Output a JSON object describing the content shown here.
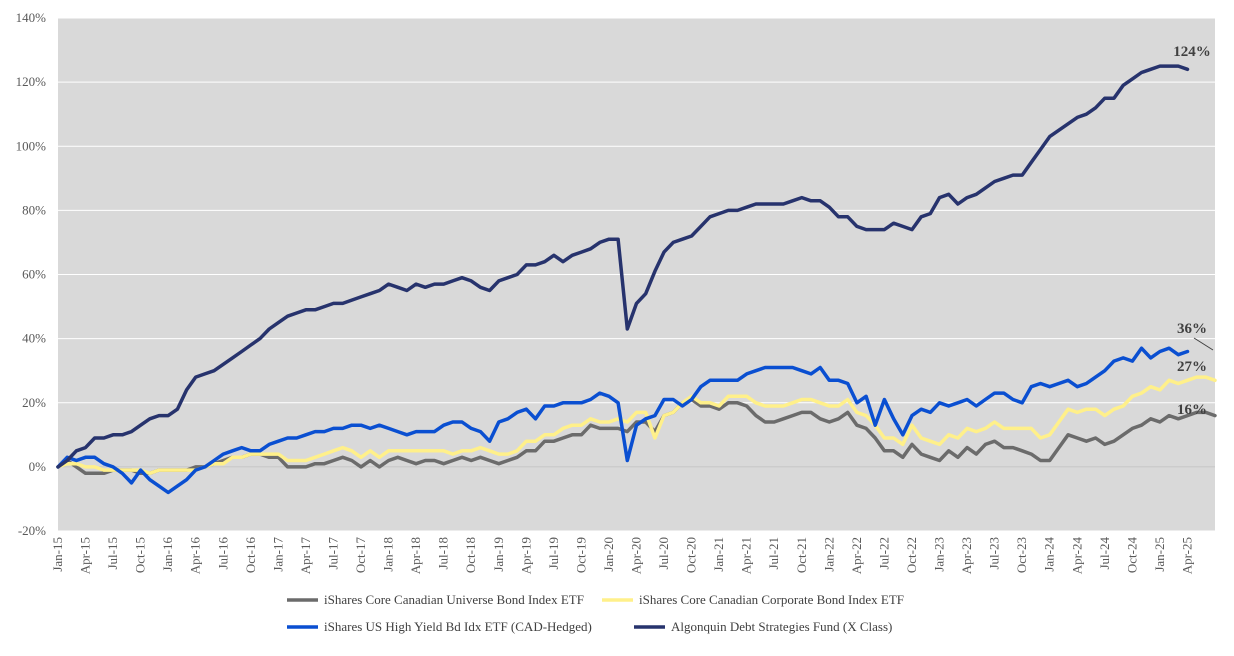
{
  "chart_data": {
    "type": "line",
    "title": "",
    "xlabel": "",
    "ylabel": "",
    "ylim": [
      -20,
      140
    ],
    "y_ticks": [
      "-20%",
      "0%",
      "20%",
      "40%",
      "60%",
      "80%",
      "100%",
      "120%",
      "140%"
    ],
    "y_tick_values": [
      -20,
      0,
      20,
      40,
      60,
      80,
      100,
      120,
      140
    ],
    "x_ticks": [
      "Jan-15",
      "Apr-15",
      "Jul-15",
      "Oct-15",
      "Jan-16",
      "Apr-16",
      "Jul-16",
      "Oct-16",
      "Jan-17",
      "Apr-17",
      "Jul-17",
      "Oct-17",
      "Jan-18",
      "Apr-18",
      "Jul-18",
      "Oct-18",
      "Jan-19",
      "Apr-19",
      "Jul-19",
      "Oct-19",
      "Jan-20",
      "Apr-20",
      "Jul-20",
      "Oct-20",
      "Jan-21",
      "Apr-21",
      "Jul-21",
      "Oct-21",
      "Jan-22",
      "Apr-22",
      "Jul-22",
      "Oct-22",
      "Jan-23",
      "Apr-23",
      "Jul-23",
      "Oct-23",
      "Jan-24",
      "Apr-24",
      "Jul-24",
      "Oct-24",
      "Jan-25",
      "Apr-25"
    ],
    "x_start": "Jan-15",
    "x_end": "Apr-25",
    "frequency": "monthly",
    "grid": true,
    "plot_background": "#d9d9d9",
    "legend_position": "bottom",
    "series": [
      {
        "name": "iShares Core Canadian Universe Bond Index ETF",
        "color": "#6b6b6b",
        "end_label": "16%",
        "values": [
          0,
          2,
          0,
          -2,
          -2,
          -2,
          -1,
          -1,
          -1,
          -2,
          -2,
          -1,
          -1,
          -1,
          -1,
          0,
          0,
          1,
          2,
          3,
          3,
          4,
          4,
          3,
          3,
          0,
          0,
          0,
          1,
          1,
          2,
          3,
          2,
          0,
          2,
          0,
          2,
          3,
          2,
          1,
          2,
          2,
          1,
          2,
          3,
          2,
          3,
          2,
          1,
          2,
          3,
          5,
          5,
          8,
          8,
          9,
          10,
          10,
          13,
          12,
          12,
          12,
          11,
          14,
          14,
          11,
          16,
          17,
          20,
          21,
          19,
          19,
          18,
          20,
          20,
          19,
          16,
          14,
          14,
          15,
          16,
          17,
          17,
          15,
          14,
          15,
          17,
          13,
          12,
          9,
          5,
          5,
          3,
          7,
          4,
          3,
          2,
          5,
          3,
          6,
          4,
          7,
          8,
          6,
          6,
          5,
          4,
          2,
          2,
          6,
          10,
          9,
          8,
          9,
          7,
          8,
          10,
          12,
          13,
          15,
          14,
          16,
          15,
          16,
          17,
          17,
          16
        ]
      },
      {
        "name": "iShares Core Canadian Corporate Bond Index ETF",
        "color": "#fff08a",
        "end_label": "27%",
        "values": [
          0,
          1,
          1,
          0,
          0,
          -1,
          -1,
          -1,
          -1,
          -1,
          -2,
          -1,
          -1,
          -1,
          -1,
          -1,
          0,
          1,
          1,
          3,
          3,
          4,
          4,
          4,
          4,
          2,
          2,
          2,
          3,
          4,
          5,
          6,
          5,
          3,
          5,
          3,
          5,
          5,
          5,
          5,
          5,
          5,
          5,
          4,
          5,
          5,
          6,
          5,
          4,
          4,
          5,
          8,
          8,
          10,
          10,
          12,
          13,
          13,
          15,
          14,
          14,
          15,
          14,
          17,
          17,
          9,
          16,
          17,
          20,
          22,
          20,
          20,
          19,
          22,
          22,
          22,
          20,
          19,
          19,
          19,
          20,
          21,
          21,
          20,
          19,
          19,
          21,
          17,
          16,
          13,
          9,
          9,
          7,
          13,
          9,
          8,
          7,
          10,
          9,
          12,
          11,
          12,
          14,
          12,
          12,
          12,
          12,
          9,
          10,
          14,
          18,
          17,
          18,
          18,
          16,
          18,
          19,
          22,
          23,
          25,
          24,
          27,
          26,
          27,
          28,
          28,
          27
        ]
      },
      {
        "name": "iShares US High Yield Bd Idx ETF (CAD-Hedged)",
        "color": "#0a4fd1",
        "end_label": "36%",
        "values": [
          0,
          3,
          2,
          3,
          3,
          1,
          0,
          -2,
          -5,
          -1,
          -4,
          -6,
          -8,
          -6,
          -4,
          -1,
          0,
          2,
          4,
          5,
          6,
          5,
          5,
          7,
          8,
          9,
          9,
          10,
          11,
          11,
          12,
          12,
          13,
          13,
          12,
          13,
          12,
          11,
          10,
          11,
          11,
          11,
          13,
          14,
          14,
          12,
          11,
          8,
          14,
          15,
          17,
          18,
          15,
          19,
          19,
          20,
          20,
          20,
          21,
          23,
          22,
          20,
          2,
          13,
          15,
          16,
          21,
          21,
          19,
          21,
          25,
          27,
          27,
          27,
          27,
          29,
          30,
          31,
          31,
          31,
          31,
          30,
          29,
          31,
          27,
          27,
          26,
          20,
          22,
          13,
          21,
          15,
          10,
          16,
          18,
          17,
          20,
          19,
          20,
          21,
          19,
          21,
          23,
          23,
          21,
          20,
          25,
          26,
          25,
          26,
          27,
          25,
          26,
          28,
          30,
          33,
          34,
          33,
          37,
          34,
          36,
          37,
          35,
          36
        ]
      },
      {
        "name": "Algonquin Debt Strategies Fund (X Class)",
        "color": "#27336d",
        "end_label": "124%",
        "values": [
          0,
          2,
          5,
          6,
          9,
          9,
          10,
          10,
          11,
          13,
          15,
          16,
          16,
          18,
          24,
          28,
          29,
          30,
          32,
          34,
          36,
          38,
          40,
          43,
          45,
          47,
          48,
          49,
          49,
          50,
          51,
          51,
          52,
          53,
          54,
          55,
          57,
          56,
          55,
          57,
          56,
          57,
          57,
          58,
          59,
          58,
          56,
          55,
          58,
          59,
          60,
          63,
          63,
          64,
          66,
          64,
          66,
          67,
          68,
          70,
          71,
          71,
          43,
          51,
          54,
          61,
          67,
          70,
          71,
          72,
          75,
          78,
          79,
          80,
          80,
          81,
          82,
          82,
          82,
          82,
          83,
          84,
          83,
          83,
          81,
          78,
          78,
          75,
          74,
          74,
          74,
          76,
          75,
          74,
          78,
          79,
          84,
          85,
          82,
          84,
          85,
          87,
          89,
          90,
          91,
          91,
          95,
          99,
          103,
          105,
          107,
          109,
          110,
          112,
          115,
          115,
          119,
          121,
          123,
          124,
          125,
          125,
          125,
          124
        ]
      }
    ]
  }
}
